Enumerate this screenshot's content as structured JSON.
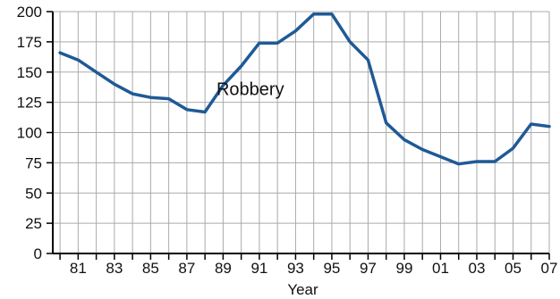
{
  "chart_data": {
    "type": "line",
    "title": "",
    "xlabel": "Year",
    "ylabel": "",
    "x": [
      1980,
      1981,
      1982,
      1983,
      1984,
      1985,
      1986,
      1987,
      1988,
      1989,
      1990,
      1991,
      1992,
      1993,
      1994,
      1995,
      1996,
      1997,
      1998,
      1999,
      2000,
      2001,
      2002,
      2003,
      2004,
      2005,
      2006,
      2007
    ],
    "series": [
      {
        "name": "Robbery",
        "color": "#1f5a96",
        "values": [
          166,
          160,
          150,
          140,
          132,
          129,
          128,
          119,
          117,
          139,
          155,
          174,
          174,
          184,
          198,
          198,
          175,
          160,
          108,
          94,
          86,
          80,
          74,
          76,
          76,
          87,
          107,
          105
        ]
      }
    ],
    "xlim": [
      1979.6,
      2007
    ],
    "ylim": [
      0,
      200
    ],
    "x_ticks": [
      1981,
      1983,
      1985,
      1987,
      1989,
      1991,
      1993,
      1995,
      1997,
      1999,
      2001,
      2003,
      2005,
      2007
    ],
    "x_tick_labels": [
      "81",
      "83",
      "85",
      "87",
      "89",
      "91",
      "93",
      "95",
      "97",
      "99",
      "01",
      "03",
      "05",
      "07"
    ],
    "x_minor_step": 1,
    "y_ticks": [
      0,
      25,
      50,
      75,
      100,
      125,
      150,
      175,
      200
    ],
    "y_tick_labels": [
      "0",
      "25",
      "50",
      "75",
      "100",
      "125",
      "150",
      "175",
      "200"
    ],
    "grid": true,
    "legend": "none",
    "annotations": [
      {
        "text": "Robbery",
        "x": 1990.5,
        "y": 136
      }
    ]
  }
}
